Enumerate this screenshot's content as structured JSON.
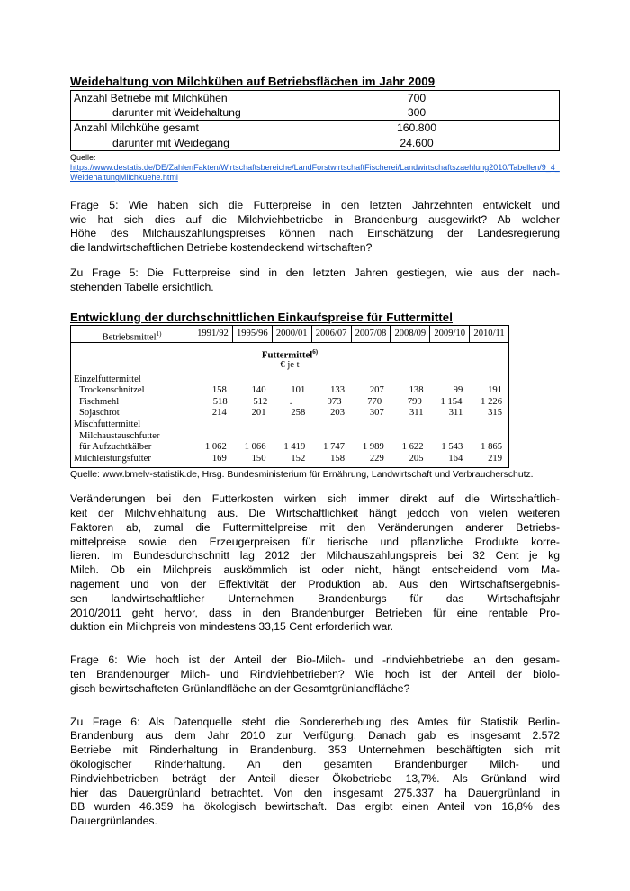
{
  "colors": {
    "link_blue": "#1155CC"
  },
  "section1": {
    "title": "Weidehaltung von Milchkühen auf Betriebsflächen im Jahr 2009",
    "table": {
      "rows": [
        {
          "label": "Anzahl Betriebe mit Milchkühen",
          "value": "700"
        },
        {
          "label": "darunter mit Weidehaltung",
          "value": "300"
        },
        {
          "label": "Anzahl Milchkühe gesamt",
          "value": "160.800"
        },
        {
          "label": "darunter mit Weidegang",
          "value": "24.600"
        }
      ]
    },
    "source_label": "Quelle:",
    "source_url": "https://www.destatis.de/DE/ZahlenFakten/Wirtschaftsbereiche/LandForstwirtschaftFischerei/Landwirtschaftszaehlung2010/Tabellen/9_4_WeidehaltungMilchkuehe.html"
  },
  "qa5": {
    "question_lines": [
      "Frage 5: Wie haben sich die Futterpreise in den letzten Jahrzehnten entwickelt und",
      "wie hat sich dies auf die Milchviehbetriebe in Brandenburg ausgewirkt? Ab welcher",
      "Höhe des Milchauszahlungspreises können nach Einschätzung der Landesregierung",
      "die landwirtschaftlichen Betriebe kostendeckend wirtschaften?"
    ],
    "answer_lines": [
      "Zu Frage 5: Die Futterpreise sind in den letzten Jahren gestiegen, wie aus der nach-",
      "stehenden Tabelle ersichtlich."
    ]
  },
  "section2": {
    "title": "Entwicklung der durchschnittlichen Einkaufspreise für Futtermittel",
    "table": {
      "header_label": "Betriebsmittel",
      "header_sup": "1)",
      "years": [
        "1991/92",
        "1995/96",
        "2000/01",
        "2006/07",
        "2007/08",
        "2008/09",
        "2009/10",
        "2010/11"
      ],
      "group_title": "Futtermittel",
      "group_title_sup": "6)",
      "unit": "€ je t",
      "rows": [
        {
          "label": "Einzelfuttermittel",
          "indent": false,
          "values": [
            "",
            "",
            "",
            "",
            "",
            "",
            "",
            ""
          ]
        },
        {
          "label": "Trockenschnitzel",
          "indent": true,
          "values": [
            "158",
            "140",
            "101",
            "133",
            "207",
            "138",
            "99",
            "191"
          ]
        },
        {
          "label": "Fischmehl",
          "indent": true,
          "values": [
            "518",
            "512",
            ".",
            "973",
            "770",
            "799",
            "1 154",
            "1 226"
          ]
        },
        {
          "label": "Sojaschrot",
          "indent": true,
          "values": [
            "214",
            "201",
            "258",
            "203",
            "307",
            "311",
            "311",
            "315"
          ]
        },
        {
          "label": "Mischfuttermittel",
          "indent": false,
          "values": [
            "",
            "",
            "",
            "",
            "",
            "",
            "",
            ""
          ]
        },
        {
          "label": "Milchaustauschfutter",
          "indent": true,
          "values": [
            "",
            "",
            "",
            "",
            "",
            "",
            "",
            ""
          ]
        },
        {
          "label": "für Aufzuchtkälber",
          "indent": true,
          "values": [
            "1 062",
            "1 066",
            "1 419",
            "1 747",
            "1 989",
            "1 622",
            "1 543",
            "1 865"
          ]
        },
        {
          "label": "Milchleistungsfutter",
          "indent": false,
          "values": [
            "169",
            "150",
            "152",
            "158",
            "229",
            "205",
            "164",
            "219"
          ]
        }
      ]
    },
    "source": "Quelle: www.bmelv-statistik.de, Hrsg. Bundesministerium für Ernährung, Landwirtschaft und Verbraucherschutz."
  },
  "para_futterkosten": {
    "lines": [
      "Veränderungen bei den Futterkosten wirken sich immer direkt auf die Wirtschaftlich-",
      "keit der Milchviehhaltung aus. Die Wirtschaftlichkeit hängt jedoch von vielen weiteren",
      "Faktoren ab, zumal die Futtermittelpreise mit den Veränderungen anderer Betriebs-",
      "mittelpreise sowie den Erzeugerpreisen für tierische und pflanzliche Produkte korre-",
      "lieren. Im Bundesdurchschnitt lag 2012 der Milchauszahlungspreis bei 32 Cent je kg",
      "Milch. Ob ein Milchpreis auskömmlich ist oder nicht, hängt entscheidend vom Ma-",
      "nagement und von der Effektivität der Produktion ab. Aus den Wirtschaftsergebnis-",
      "sen landwirtschaftlicher Unternehmen Brandenburgs für das Wirtschaftsjahr",
      "2010/2011 geht hervor, dass in den Brandenburger Betrieben für eine rentable Pro-",
      "duktion ein Milchpreis von mindestens 33,15 Cent erforderlich war."
    ]
  },
  "qa6": {
    "question_lines": [
      "Frage 6: Wie hoch ist der Anteil der Bio-Milch- und -rindviehbetriebe an den gesam-",
      "ten Brandenburger Milch- und Rindviehbetrieben? Wie hoch ist der Anteil der biolo-",
      "gisch bewirtschafteten Grünlandfläche an der Gesamtgrünlandfläche?"
    ],
    "answer_lines": [
      "Zu Frage 6: Als Datenquelle steht die Sondererhebung des Amtes für Statistik Berlin-",
      "Brandenburg aus dem Jahr 2010 zur Verfügung. Danach gab es insgesamt 2.572",
      "Betriebe mit Rinderhaltung in Brandenburg. 353 Unternehmen beschäftigten sich mit",
      "ökologischer Rinderhaltung. An den gesamten Brandenburger Milch- und",
      "Rindviehbetrieben beträgt der Anteil dieser Ökobetriebe 13,7%. Als Grünland wird",
      "hier das Dauergrünland betrachtet. Von den insgesamt 275.337 ha Dauergrünland in",
      "BB wurden 46.359 ha ökologisch bewirtschaft. Das ergibt einen Anteil von 16,8% des",
      "Dauergrünlandes."
    ]
  }
}
